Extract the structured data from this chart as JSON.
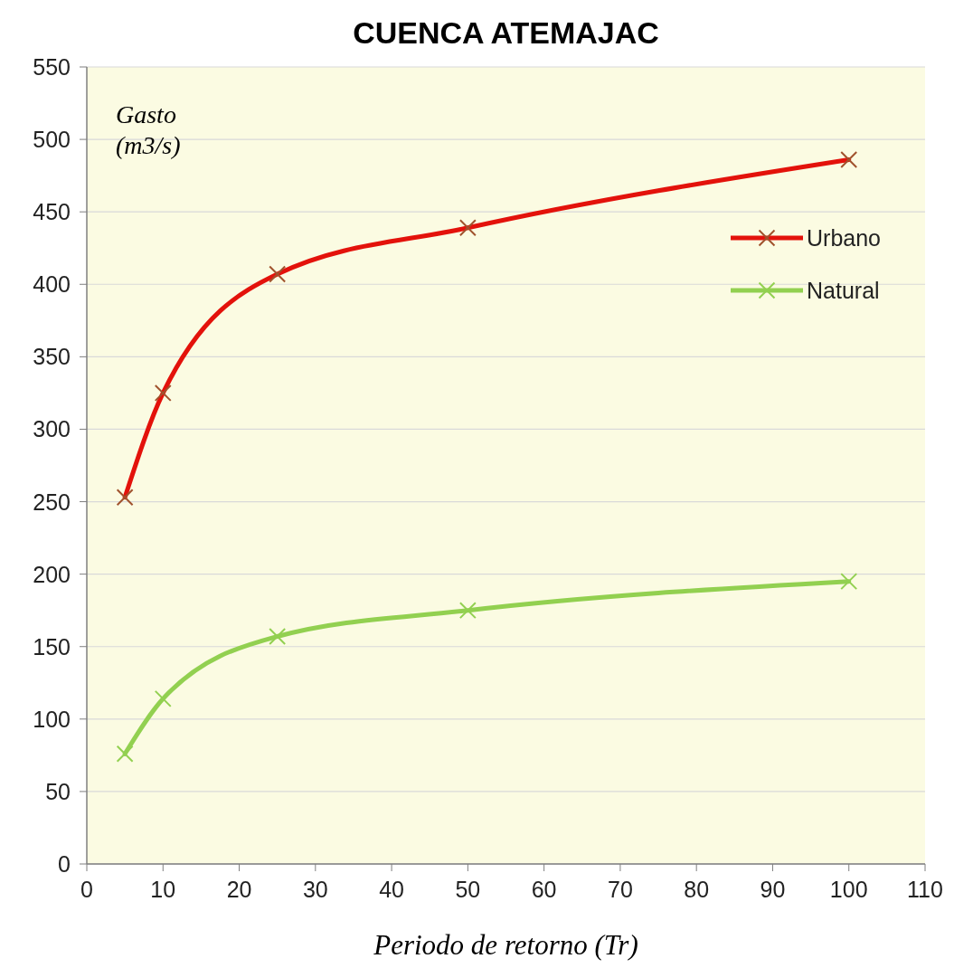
{
  "chart_data": {
    "type": "line",
    "title": "CUENCA ATEMAJAC",
    "xlabel": "Periodo de retorno (Tr)",
    "ylabel": "Gasto (m3/s)",
    "x": [
      5,
      10,
      25,
      50,
      100
    ],
    "series": [
      {
        "name": "Urbano",
        "color": "#e3120b",
        "values": [
          253,
          325,
          407,
          439,
          486
        ]
      },
      {
        "name": "Natural",
        "color": "#92d050",
        "values": [
          76,
          114,
          157,
          175,
          195
        ]
      }
    ],
    "xlim": [
      0,
      110
    ],
    "xticks": [
      0,
      10,
      20,
      30,
      40,
      50,
      60,
      70,
      80,
      90,
      100,
      110
    ],
    "ylim": [
      0,
      550
    ],
    "yticks": [
      0,
      50,
      100,
      150,
      200,
      250,
      300,
      350,
      400,
      450,
      500,
      550
    ],
    "grid": "y",
    "legend": "right",
    "marker": "cross"
  }
}
